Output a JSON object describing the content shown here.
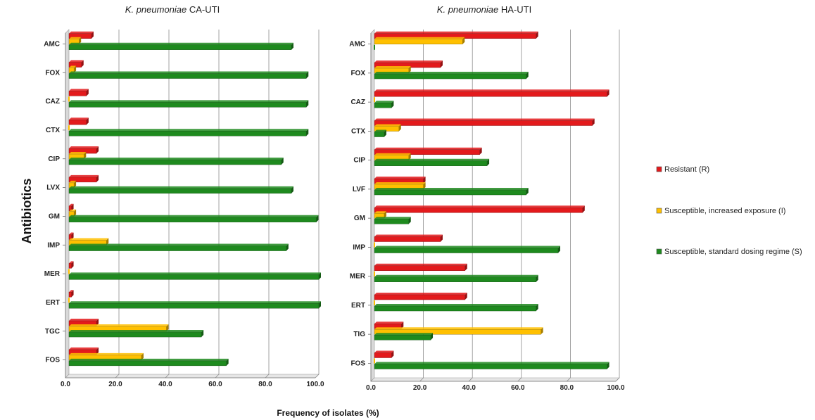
{
  "figure": {
    "ylabel": "Antibiotics",
    "xlabel": "Frequency of isolates (%)"
  },
  "legend": [
    {
      "label": "Resistant (R)",
      "color": "#e31a1c"
    },
    {
      "label": "Susceptible, increased exposure (I)",
      "color": "#ffc000"
    },
    {
      "label": "Susceptible, standard dosing regime (S)",
      "color": "#1e8a1e"
    }
  ],
  "chart_data": [
    {
      "type": "bar",
      "orientation": "horizontal",
      "title_italic": "K. pneumoniae",
      "title_rest": " CA-UTI",
      "categories": [
        "AMC",
        "FOX",
        "CAZ",
        "CTX",
        "CIP",
        "LVX",
        "GM",
        "IMP",
        "MER",
        "ERT",
        "TGC",
        "FOS"
      ],
      "xlim": [
        0,
        100
      ],
      "xticks": [
        "0.0",
        "20.0",
        "40.0",
        "60.0",
        "80.0",
        "100.0"
      ],
      "grid": true,
      "series": [
        {
          "name": "Resistant (R)",
          "color": "#e31a1c",
          "values": [
            9,
            5,
            7,
            7,
            11,
            11,
            1,
            1,
            1,
            1,
            11,
            11
          ]
        },
        {
          "name": "Susceptible, increased exposure (I)",
          "color": "#ffc000",
          "values": [
            4,
            2,
            0,
            0,
            6,
            2,
            2,
            15,
            0,
            0,
            39,
            29
          ]
        },
        {
          "name": "Susceptible, standard dosing regime (S)",
          "color": "#1e8a1e",
          "values": [
            89,
            95,
            95,
            95,
            85,
            89,
            99,
            87,
            100,
            100,
            53,
            63
          ]
        }
      ]
    },
    {
      "type": "bar",
      "orientation": "horizontal",
      "title_italic": "K. pneumoniae",
      "title_rest": " HA-UTI",
      "categories": [
        "AMC",
        "FOX",
        "CAZ",
        "CTX",
        "CIP",
        "LVF",
        "GM",
        "IMP",
        "MER",
        "ERT",
        "TIG",
        "FOS"
      ],
      "xlim": [
        0,
        100
      ],
      "xticks": [
        "0.0",
        "20.0",
        "40.0",
        "60.0",
        "80.0",
        "100.0"
      ],
      "grid": true,
      "series": [
        {
          "name": "Resistant (R)",
          "color": "#e31a1c",
          "values": [
            66,
            27,
            95,
            89,
            43,
            20,
            85,
            27,
            37,
            37,
            11,
            7
          ]
        },
        {
          "name": "Susceptible, increased exposure (I)",
          "color": "#ffc000",
          "values": [
            36,
            14,
            0,
            10,
            14,
            20,
            4,
            0,
            0,
            0,
            68,
            0
          ]
        },
        {
          "name": "Susceptible, standard dosing regime (S)",
          "color": "#1e8a1e",
          "values": [
            0,
            62,
            7,
            4,
            46,
            62,
            14,
            75,
            66,
            66,
            23,
            95
          ]
        }
      ]
    }
  ]
}
